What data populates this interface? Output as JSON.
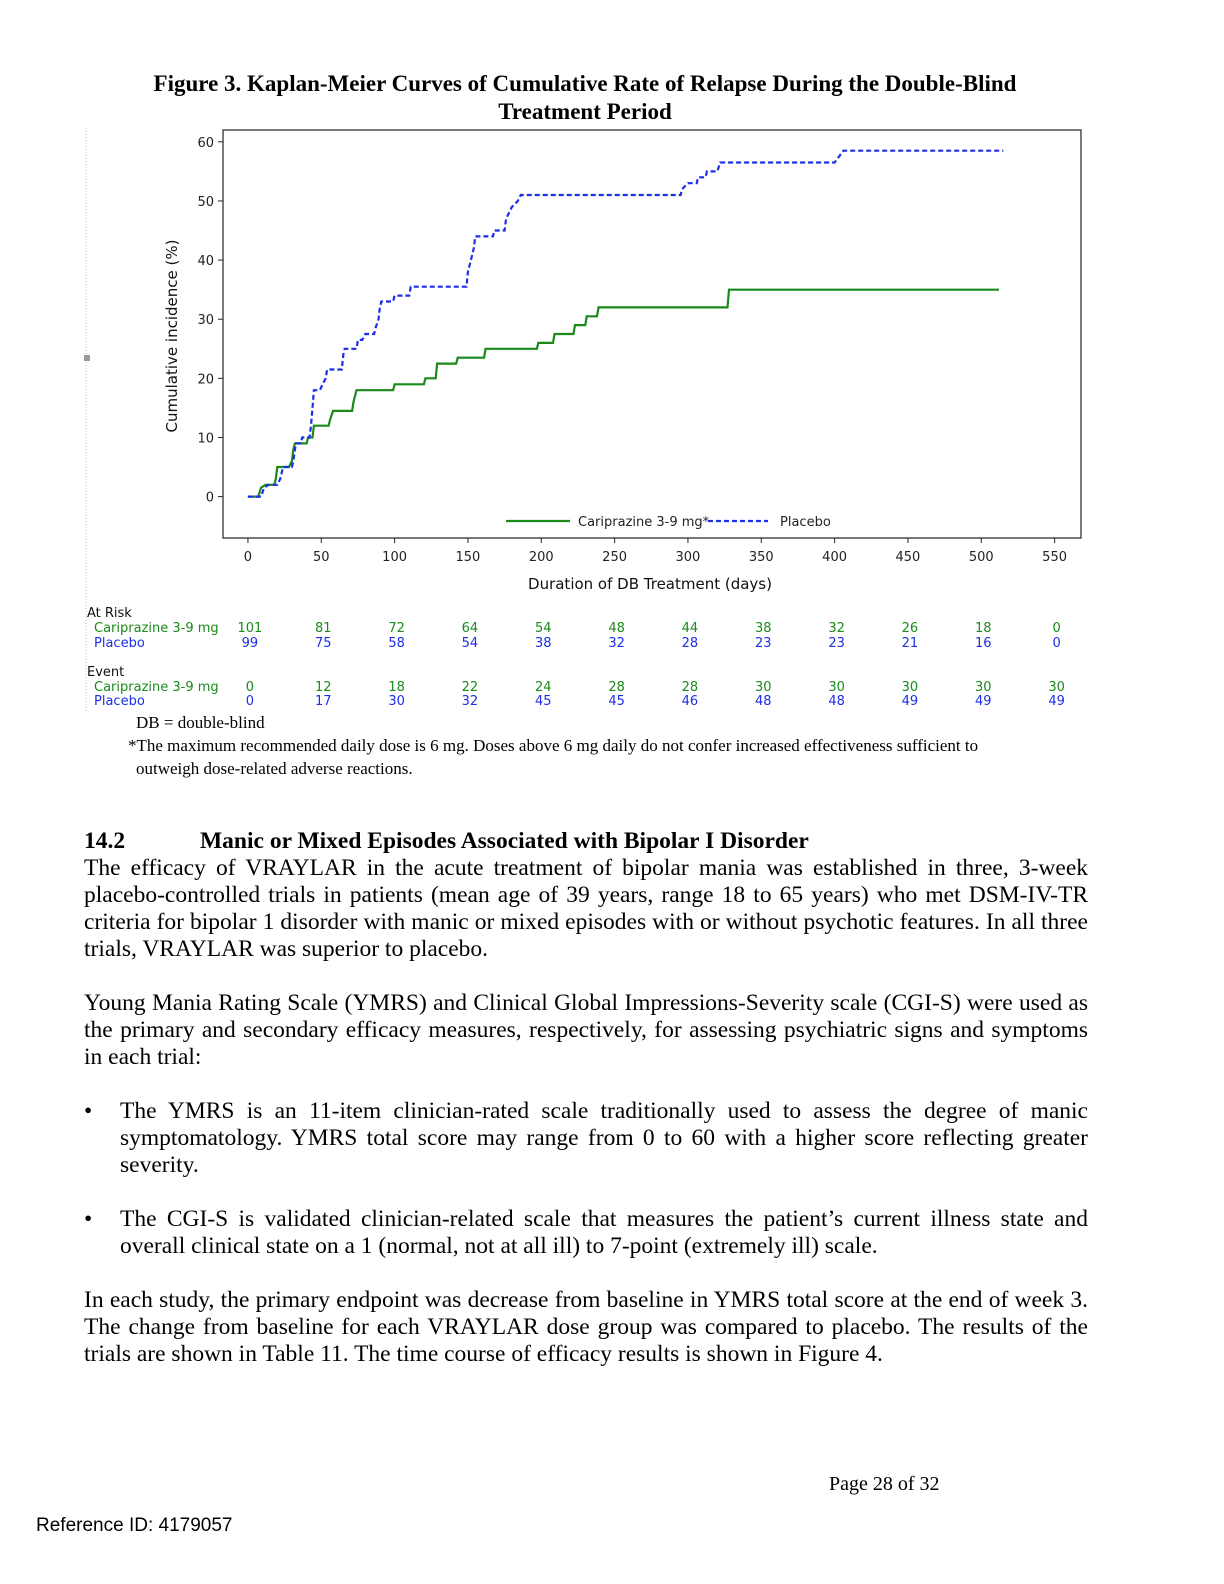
{
  "figure": {
    "title": "Figure 3. Kaplan-Meier Curves of Cumulative Rate of Relapse During the Double-Blind Treatment Period"
  },
  "chart_data": {
    "type": "line",
    "step": true,
    "title": "Figure 3. Kaplan-Meier Curves of Cumulative Rate of Relapse During the Double-Blind Treatment Period",
    "xlabel": "Duration of DB Treatment (days)",
    "ylabel": "Cumulative incidence (%)",
    "xlim": [
      -17,
      568
    ],
    "ylim": [
      -7,
      62
    ],
    "x_ticks": [
      0,
      50,
      100,
      150,
      200,
      250,
      300,
      350,
      400,
      450,
      500,
      550
    ],
    "y_ticks": [
      0,
      10,
      20,
      30,
      40,
      50,
      60
    ],
    "grid": false,
    "legend_position": "bottom-center",
    "series": [
      {
        "name": "Cariprazine 3-9 mg*",
        "color": "#1a8a1a",
        "dash": "solid",
        "points": [
          [
            0,
            0
          ],
          [
            7,
            0
          ],
          [
            9,
            1.5
          ],
          [
            12,
            2
          ],
          [
            18,
            2
          ],
          [
            19,
            3
          ],
          [
            20,
            5
          ],
          [
            28,
            5
          ],
          [
            30,
            6
          ],
          [
            31,
            8
          ],
          [
            32,
            9
          ],
          [
            40,
            9
          ],
          [
            41,
            10
          ],
          [
            44,
            10
          ],
          [
            45,
            12
          ],
          [
            55,
            12
          ],
          [
            56,
            13
          ],
          [
            58,
            14.5
          ],
          [
            71,
            14.5
          ],
          [
            72,
            16
          ],
          [
            74,
            18
          ],
          [
            99,
            18
          ],
          [
            100,
            19
          ],
          [
            120,
            19
          ],
          [
            121,
            20
          ],
          [
            128,
            20
          ],
          [
            129,
            22.5
          ],
          [
            142,
            22.5
          ],
          [
            143,
            23.5
          ],
          [
            161,
            23.5
          ],
          [
            162,
            25
          ],
          [
            197,
            25
          ],
          [
            198,
            26
          ],
          [
            208,
            26
          ],
          [
            209,
            27.5
          ],
          [
            222,
            27.5
          ],
          [
            223,
            29
          ],
          [
            230,
            29
          ],
          [
            231,
            30.5
          ],
          [
            238,
            30.5
          ],
          [
            239,
            32
          ],
          [
            327,
            32
          ],
          [
            328,
            35
          ],
          [
            512,
            35
          ]
        ]
      },
      {
        "name": "Placebo",
        "color": "#1c2ee8",
        "dash": "dashed",
        "points": [
          [
            0,
            0
          ],
          [
            9,
            0
          ],
          [
            11,
            1.5
          ],
          [
            14,
            2
          ],
          [
            20,
            2
          ],
          [
            22,
            3
          ],
          [
            24,
            5
          ],
          [
            30,
            5
          ],
          [
            31,
            6
          ],
          [
            32,
            8
          ],
          [
            33,
            9
          ],
          [
            36,
            9
          ],
          [
            37,
            10
          ],
          [
            42,
            10
          ],
          [
            43,
            12
          ],
          [
            44,
            15
          ],
          [
            45,
            18
          ],
          [
            49,
            18
          ],
          [
            51,
            19
          ],
          [
            53,
            20
          ],
          [
            54,
            21.5
          ],
          [
            64,
            21.5
          ],
          [
            65,
            24
          ],
          [
            66,
            25
          ],
          [
            74,
            25
          ],
          [
            75,
            26.5
          ],
          [
            78,
            26.5
          ],
          [
            80,
            27.5
          ],
          [
            86,
            27.5
          ],
          [
            87,
            28.5
          ],
          [
            89,
            30
          ],
          [
            90,
            32
          ],
          [
            91,
            33
          ],
          [
            99,
            33
          ],
          [
            100,
            34
          ],
          [
            110,
            34
          ],
          [
            111,
            35.5
          ],
          [
            149,
            35.5
          ],
          [
            150,
            38
          ],
          [
            152,
            40
          ],
          [
            154,
            42
          ],
          [
            155,
            44
          ],
          [
            167,
            44
          ],
          [
            168,
            45
          ],
          [
            175,
            45
          ],
          [
            176,
            47
          ],
          [
            180,
            49
          ],
          [
            184,
            50
          ],
          [
            186,
            51
          ],
          [
            295,
            51
          ],
          [
            296,
            52
          ],
          [
            300,
            53
          ],
          [
            306,
            53
          ],
          [
            307,
            54
          ],
          [
            312,
            54
          ],
          [
            313,
            55
          ],
          [
            320,
            55
          ],
          [
            322,
            56.5
          ],
          [
            400,
            56.5
          ],
          [
            406,
            58.5
          ],
          [
            515,
            58.5
          ]
        ]
      }
    ]
  },
  "risk_table": {
    "at_risk_label": "At Risk",
    "event_label": "Event",
    "cari_label": "Cariprazine 3-9 mg",
    "placebo_label": "Placebo",
    "days": [
      0,
      50,
      100,
      150,
      200,
      250,
      300,
      350,
      400,
      450,
      500,
      550
    ],
    "at_risk_cari": [
      "101",
      "81",
      "72",
      "64",
      "54",
      "48",
      "44",
      "38",
      "32",
      "26",
      "18",
      "0"
    ],
    "at_risk_placebo": [
      "99",
      "75",
      "58",
      "54",
      "38",
      "32",
      "28",
      "23",
      "23",
      "21",
      "16",
      "0"
    ],
    "event_cari": [
      "0",
      "12",
      "18",
      "22",
      "24",
      "28",
      "28",
      "30",
      "30",
      "30",
      "30",
      "30"
    ],
    "event_placebo": [
      "0",
      "17",
      "30",
      "32",
      "45",
      "45",
      "46",
      "48",
      "48",
      "49",
      "49",
      "49"
    ]
  },
  "notes": {
    "db": "DB = double-blind",
    "footnote_line1": "*The maximum recommended daily dose is 6 mg. Doses above 6 mg daily do not confer increased effectiveness sufficient to",
    "footnote_line2": "outweigh dose-related adverse reactions."
  },
  "section": {
    "number": "14.2",
    "heading": "Manic or Mixed Episodes Associated with Bipolar I Disorder",
    "para1": "The efficacy of VRAYLAR in the acute treatment of bipolar mania was established in three, 3-week placebo-controlled trials in patients (mean age of 39 years, range 18 to 65 years) who met DSM-IV-TR criteria for bipolar 1 disorder with manic or mixed episodes with or without psychotic features. In all three trials, VRAYLAR was superior to placebo.",
    "para2": "Young Mania Rating Scale (YMRS) and Clinical Global Impressions-Severity scale (CGI-S) were used as the primary and secondary efficacy measures, respectively, for assessing psychiatric signs and symptoms in each trial:",
    "bullet_glyph": "•",
    "bullet1": "The YMRS is an 11-item clinician-rated scale traditionally used to assess the degree of manic symptomatology.  YMRS total score may range from 0 to 60 with a higher score reflecting greater severity.",
    "bullet2": "The CGI-S is validated clinician-related scale that measures the patient’s current illness state and overall clinical state on a 1 (normal, not at all ill) to 7-point (extremely ill) scale.",
    "para3": "In each study, the primary endpoint was decrease from baseline in YMRS total score at the end of week 3. The change from baseline for each VRAYLAR dose group was compared to placebo. The results of the trials are shown in Table 11. The time course of efficacy results is shown in Figure 4."
  },
  "footer": {
    "page": "Page 28 of 32",
    "reference": "Reference ID: 4179057"
  }
}
